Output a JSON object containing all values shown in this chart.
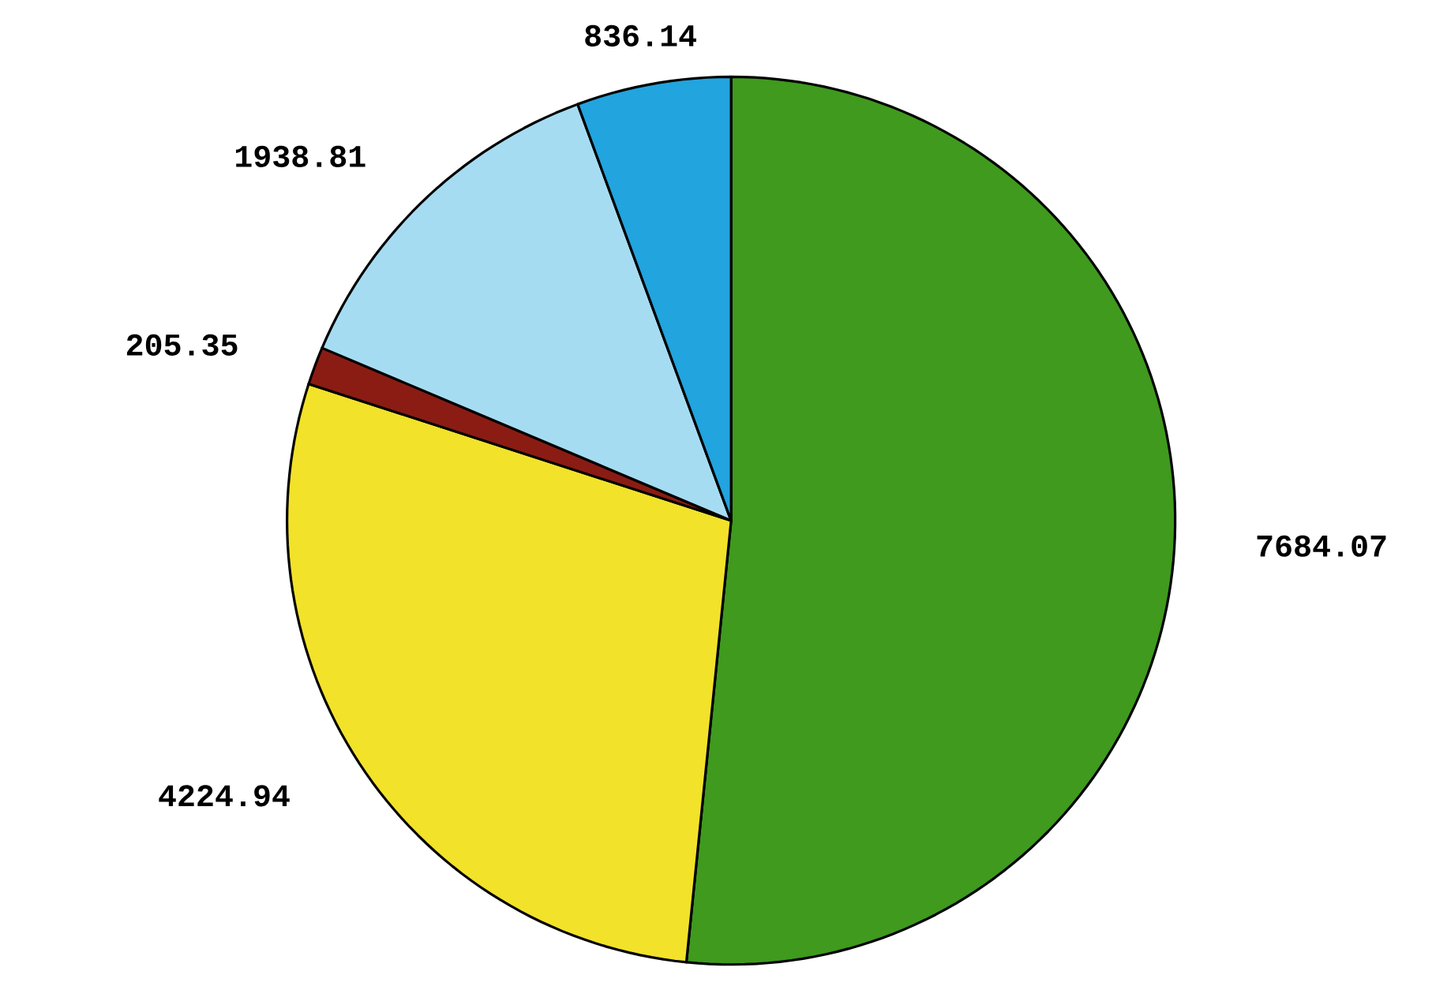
{
  "chart_data": {
    "type": "pie",
    "categories": [
      null,
      null,
      null,
      null,
      null
    ],
    "values": [
      7684.07,
      4224.94,
      205.35,
      1938.81,
      836.14
    ],
    "colors": [
      "#3f9a1e",
      "#f2e22a",
      "#8a1c14",
      "#a6dcf2",
      "#22a4de"
    ],
    "data_labels": true
  }
}
